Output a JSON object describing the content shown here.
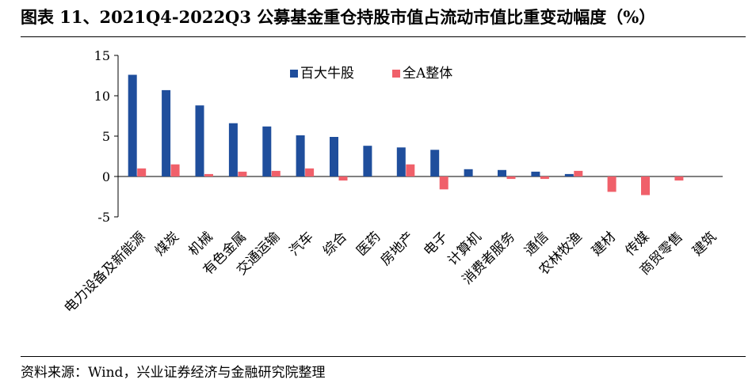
{
  "title": "图表 11、2021Q4-2022Q3 公募基金重仓持股市值占流动市值比重变动幅度（%）",
  "source": "资料来源：Wind，兴业证券经济与金融研究院整理",
  "colors": {
    "series1": "#1F4E9C",
    "series2": "#F0606A"
  },
  "chart_data": {
    "type": "bar",
    "categories": [
      "电力设备及新能源",
      "煤炭",
      "机械",
      "有色金属",
      "交通运输",
      "汽车",
      "综合",
      "医药",
      "房地产",
      "电子",
      "计算机",
      "消费者服务",
      "通信",
      "农林牧渔",
      "建材",
      "传媒",
      "商贸零售",
      "建筑"
    ],
    "series": [
      {
        "name": "百大牛股",
        "values": [
          12.6,
          10.7,
          8.8,
          6.6,
          6.2,
          5.1,
          4.9,
          3.8,
          3.6,
          3.3,
          0.9,
          0.8,
          0.6,
          0.3,
          0.0,
          0.0,
          0.0,
          0.0
        ]
      },
      {
        "name": "全A整体",
        "values": [
          1.0,
          1.5,
          0.3,
          0.6,
          0.7,
          1.0,
          -0.5,
          0.0,
          1.5,
          -1.6,
          0.0,
          -0.3,
          -0.3,
          0.7,
          -1.9,
          -2.3,
          -0.5,
          0.0
        ]
      }
    ],
    "yticks": [
      "15",
      "10",
      "5",
      "0",
      "-5"
    ],
    "ylim": [
      -5,
      15
    ],
    "grid": false,
    "legend": "top-center"
  }
}
